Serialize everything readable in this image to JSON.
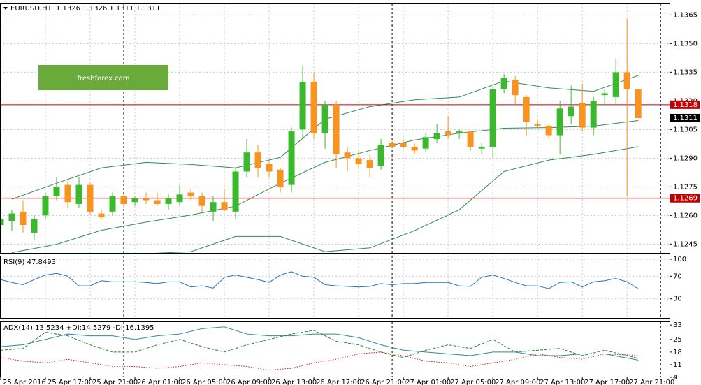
{
  "chart_data": [
    {
      "type": "candlestick",
      "title": "EURUSD,H1",
      "subtitle": "1.1326 1.1326 1.1311 1.1311",
      "watermark": "freshforex.com",
      "up_color": "#3cb82e",
      "down_color": "#f7931e",
      "open": [
        1.1255,
        1.1257,
        1.1262,
        1.1251,
        1.126,
        1.127,
        1.1276,
        1.1266,
        1.1276,
        1.1261,
        1.1262,
        1.127,
        1.1267,
        1.1269,
        1.1268,
        1.1266,
        1.1267,
        1.1272,
        1.127,
        1.1262,
        1.1267,
        1.1262,
        1.1283,
        1.1293,
        1.1287,
        1.1284,
        1.1276,
        1.1305,
        1.133,
        1.1303,
        1.1318,
        1.1293,
        1.129,
        1.1289,
        1.1286,
        1.1298,
        1.1298,
        1.1296,
        1.1295,
        1.13,
        1.1304,
        1.1303,
        1.1304,
        1.1295,
        1.1296,
        1.1326,
        1.1331,
        1.1322,
        1.1308,
        1.1307,
        1.1302,
        1.1312,
        1.1319,
        1.1306,
        1.1323,
        1.1322,
        1.1335,
        1.1326
      ],
      "high": [
        1.1262,
        1.1263,
        1.1268,
        1.126,
        1.1272,
        1.128,
        1.1278,
        1.128,
        1.1277,
        1.1263,
        1.1272,
        1.1271,
        1.127,
        1.1272,
        1.1272,
        1.1271,
        1.1276,
        1.1274,
        1.1272,
        1.127,
        1.1274,
        1.1285,
        1.13,
        1.1297,
        1.1289,
        1.1285,
        1.1306,
        1.1338,
        1.1335,
        1.132,
        1.132,
        1.1296,
        1.1294,
        1.1292,
        1.13,
        1.1299,
        1.13,
        1.1298,
        1.1303,
        1.1308,
        1.1312,
        1.1305,
        1.1304,
        1.1298,
        1.1327,
        1.1334,
        1.1333,
        1.1323,
        1.131,
        1.1308,
        1.132,
        1.1328,
        1.1329,
        1.1322,
        1.1326,
        1.1342,
        1.1363,
        1.1326
      ],
      "low": [
        1.125,
        1.1252,
        1.1251,
        1.1247,
        1.1258,
        1.1268,
        1.1264,
        1.1264,
        1.126,
        1.1258,
        1.126,
        1.1264,
        1.1265,
        1.1266,
        1.1265,
        1.1263,
        1.1265,
        1.1268,
        1.1262,
        1.1257,
        1.1262,
        1.1258,
        1.128,
        1.128,
        1.128,
        1.1272,
        1.1272,
        1.13,
        1.13,
        1.1295,
        1.1285,
        1.1283,
        1.1285,
        1.128,
        1.1284,
        1.1295,
        1.1295,
        1.1292,
        1.1293,
        1.1298,
        1.13,
        1.13,
        1.1294,
        1.1292,
        1.129,
        1.1324,
        1.1318,
        1.1302,
        1.1306,
        1.13,
        1.1292,
        1.1308,
        1.1304,
        1.1302,
        1.1318,
        1.1318,
        1.127,
        1.1311
      ],
      "close": [
        1.1258,
        1.1261,
        1.1255,
        1.1258,
        1.127,
        1.1275,
        1.1267,
        1.1276,
        1.1262,
        1.1259,
        1.127,
        1.1266,
        1.1269,
        1.1268,
        1.1266,
        1.1269,
        1.1271,
        1.127,
        1.1265,
        1.1267,
        1.1263,
        1.1283,
        1.1293,
        1.1285,
        1.1283,
        1.1275,
        1.1304,
        1.133,
        1.1303,
        1.1318,
        1.1292,
        1.129,
        1.1287,
        1.1285,
        1.1297,
        1.1296,
        1.1296,
        1.1294,
        1.1301,
        1.1303,
        1.1302,
        1.1304,
        1.1296,
        1.1296,
        1.1326,
        1.1332,
        1.1323,
        1.1309,
        1.1307,
        1.1302,
        1.1316,
        1.1317,
        1.1306,
        1.132,
        1.1324,
        1.1335,
        1.1326,
        1.1311
      ],
      "bands": [
        {
          "color": "#2e8b57",
          "x": [
            1,
            5,
            9,
            13,
            17,
            21,
            25,
            29,
            33,
            37,
            41,
            45,
            49,
            53,
            57
          ],
          "values": [
            1.12685,
            1.12769,
            1.12849,
            1.12878,
            1.12867,
            1.12849,
            1.12904,
            1.13104,
            1.1317,
            1.13206,
            1.1322,
            1.13304,
            1.13268,
            1.1325,
            1.13333
          ]
        },
        {
          "color": "#2e8b57",
          "x": [
            1,
            5,
            9,
            13,
            17,
            21,
            25,
            29,
            33,
            37,
            41,
            45,
            49,
            53,
            57
          ],
          "values": [
            1.12405,
            1.12449,
            1.12522,
            1.12565,
            1.12602,
            1.12649,
            1.12769,
            1.12878,
            1.1294,
            1.12995,
            1.13031,
            1.13057,
            1.1306,
            1.13068,
            1.13097
          ]
        },
        {
          "color": "#2e8b57",
          "x": [
            1,
            5,
            9,
            13,
            17,
            21,
            25,
            29,
            33,
            37,
            41,
            45,
            49,
            53,
            57
          ],
          "values": [
            1.124,
            1.124,
            1.124,
            1.124,
            1.1241,
            1.1249,
            1.1249,
            1.1241,
            1.1243,
            1.1252,
            1.1263,
            1.1283,
            1.1289,
            1.1292,
            1.1296
          ]
        }
      ],
      "hlines": [
        {
          "value": 1.1318,
          "color": "#c00000"
        },
        {
          "value": 1.1269,
          "color": "#c00000"
        }
      ],
      "last_price": 1.1311,
      "separators": [
        11,
        35,
        59
      ],
      "xlim": [
        -0.06,
        59.8
      ],
      "xticks": [
        {
          "value": 0,
          "label": "25 Apr 2016"
        },
        {
          "value": 4,
          "label": "25 Apr 17:00"
        },
        {
          "value": 8,
          "label": "25 Apr 21:00"
        },
        {
          "value": 12,
          "label": "26 Apr 01:00"
        },
        {
          "value": 16,
          "label": "26 Apr 05:00"
        },
        {
          "value": 20,
          "label": "26 Apr 09:00"
        },
        {
          "value": 24,
          "label": "26 Apr 13:00"
        },
        {
          "value": 28,
          "label": "26 Apr 17:00"
        },
        {
          "value": 32,
          "label": "26 Apr 21:00"
        },
        {
          "value": 36,
          "label": "27 Apr 01:00"
        },
        {
          "value": 40,
          "label": "27 Apr 05:00"
        },
        {
          "value": 44,
          "label": "27 Apr 09:00"
        },
        {
          "value": 48,
          "label": "27 Apr 13:00"
        },
        {
          "value": 52,
          "label": "27 Apr 17:00"
        },
        {
          "value": 56,
          "label": "27 Apr 21:00"
        }
      ],
      "ylim": [
        1.124,
        1.1371
      ],
      "yticks": [
        {
          "value": 1.1245,
          "label": "1.1245"
        },
        {
          "value": 1.126,
          "label": "1.1260"
        },
        {
          "value": 1.1275,
          "label": "1.1275"
        },
        {
          "value": 1.129,
          "label": "1.1290"
        },
        {
          "value": 1.1305,
          "label": "1.1305"
        },
        {
          "value": 1.132,
          "label": "1.1320"
        },
        {
          "value": 1.1335,
          "label": "1.1335"
        },
        {
          "value": 1.135,
          "label": "1.1350"
        },
        {
          "value": 1.1365,
          "label": "1.1365"
        }
      ],
      "grid": true
    },
    {
      "type": "line",
      "title": "RSI(9) 47.8493",
      "series": [
        {
          "color": "#1e73be",
          "values": [
            64,
            59,
            55,
            64,
            72,
            75,
            70,
            53,
            53,
            62,
            60,
            60,
            60,
            59,
            57,
            60,
            60,
            51,
            53,
            49,
            68,
            72,
            68,
            64,
            59,
            72,
            78,
            70,
            68,
            55,
            53,
            52,
            51,
            52,
            57,
            55,
            57,
            57,
            59,
            59,
            59,
            53,
            52,
            68,
            72,
            66,
            59,
            53,
            53,
            48,
            59,
            60,
            51,
            60,
            62,
            66,
            60,
            47.8493
          ]
        }
      ],
      "separators": [
        11,
        35,
        59
      ],
      "xlim": [
        -0.06,
        59.8
      ],
      "ylim": [
        0,
        100
      ],
      "yticks": [
        100,
        70,
        30
      ],
      "grid": true
    },
    {
      "type": "line",
      "title": "ADX(14) 13.5234 +DI:14.5279 -DI:16.1395",
      "x": [
        0,
        2,
        4,
        6,
        8,
        10,
        12,
        14,
        16,
        18,
        20,
        22,
        24,
        26,
        28,
        30,
        32,
        34,
        36,
        38,
        40,
        42,
        44,
        46,
        48,
        50,
        52,
        54,
        57
      ],
      "series": [
        {
          "color": "#2a8c9a",
          "dash": "solid",
          "values": [
            21,
            22,
            25,
            28,
            27,
            27,
            25,
            27,
            28,
            31,
            32,
            28,
            27,
            27,
            28,
            28,
            26,
            22,
            19,
            18,
            17,
            16,
            18,
            18,
            16,
            16,
            17,
            17,
            13.5234
          ]
        },
        {
          "color": "#2e7d32",
          "dash": "dashed",
          "values": [
            19,
            20,
            29,
            27,
            22,
            18,
            18,
            22,
            25,
            21,
            18,
            22,
            25,
            28,
            30,
            24,
            22,
            18,
            15,
            19,
            22,
            20,
            25,
            18,
            19,
            20,
            16,
            19,
            14.5279
          ]
        },
        {
          "color": "#c62828",
          "dash": "dotted",
          "values": [
            15,
            13,
            12,
            14,
            12,
            10,
            10,
            9,
            10,
            12,
            11,
            10,
            8,
            9,
            12,
            14,
            17,
            18,
            16,
            13,
            12,
            10,
            12,
            14,
            17,
            15,
            14,
            17,
            16.1395
          ]
        }
      ],
      "separators": [
        11,
        35,
        59
      ],
      "xlim": [
        -0.06,
        59.8
      ],
      "ylim": [
        4,
        35
      ],
      "yticks": [
        33,
        25,
        18,
        11,
        4
      ],
      "grid": false
    }
  ]
}
